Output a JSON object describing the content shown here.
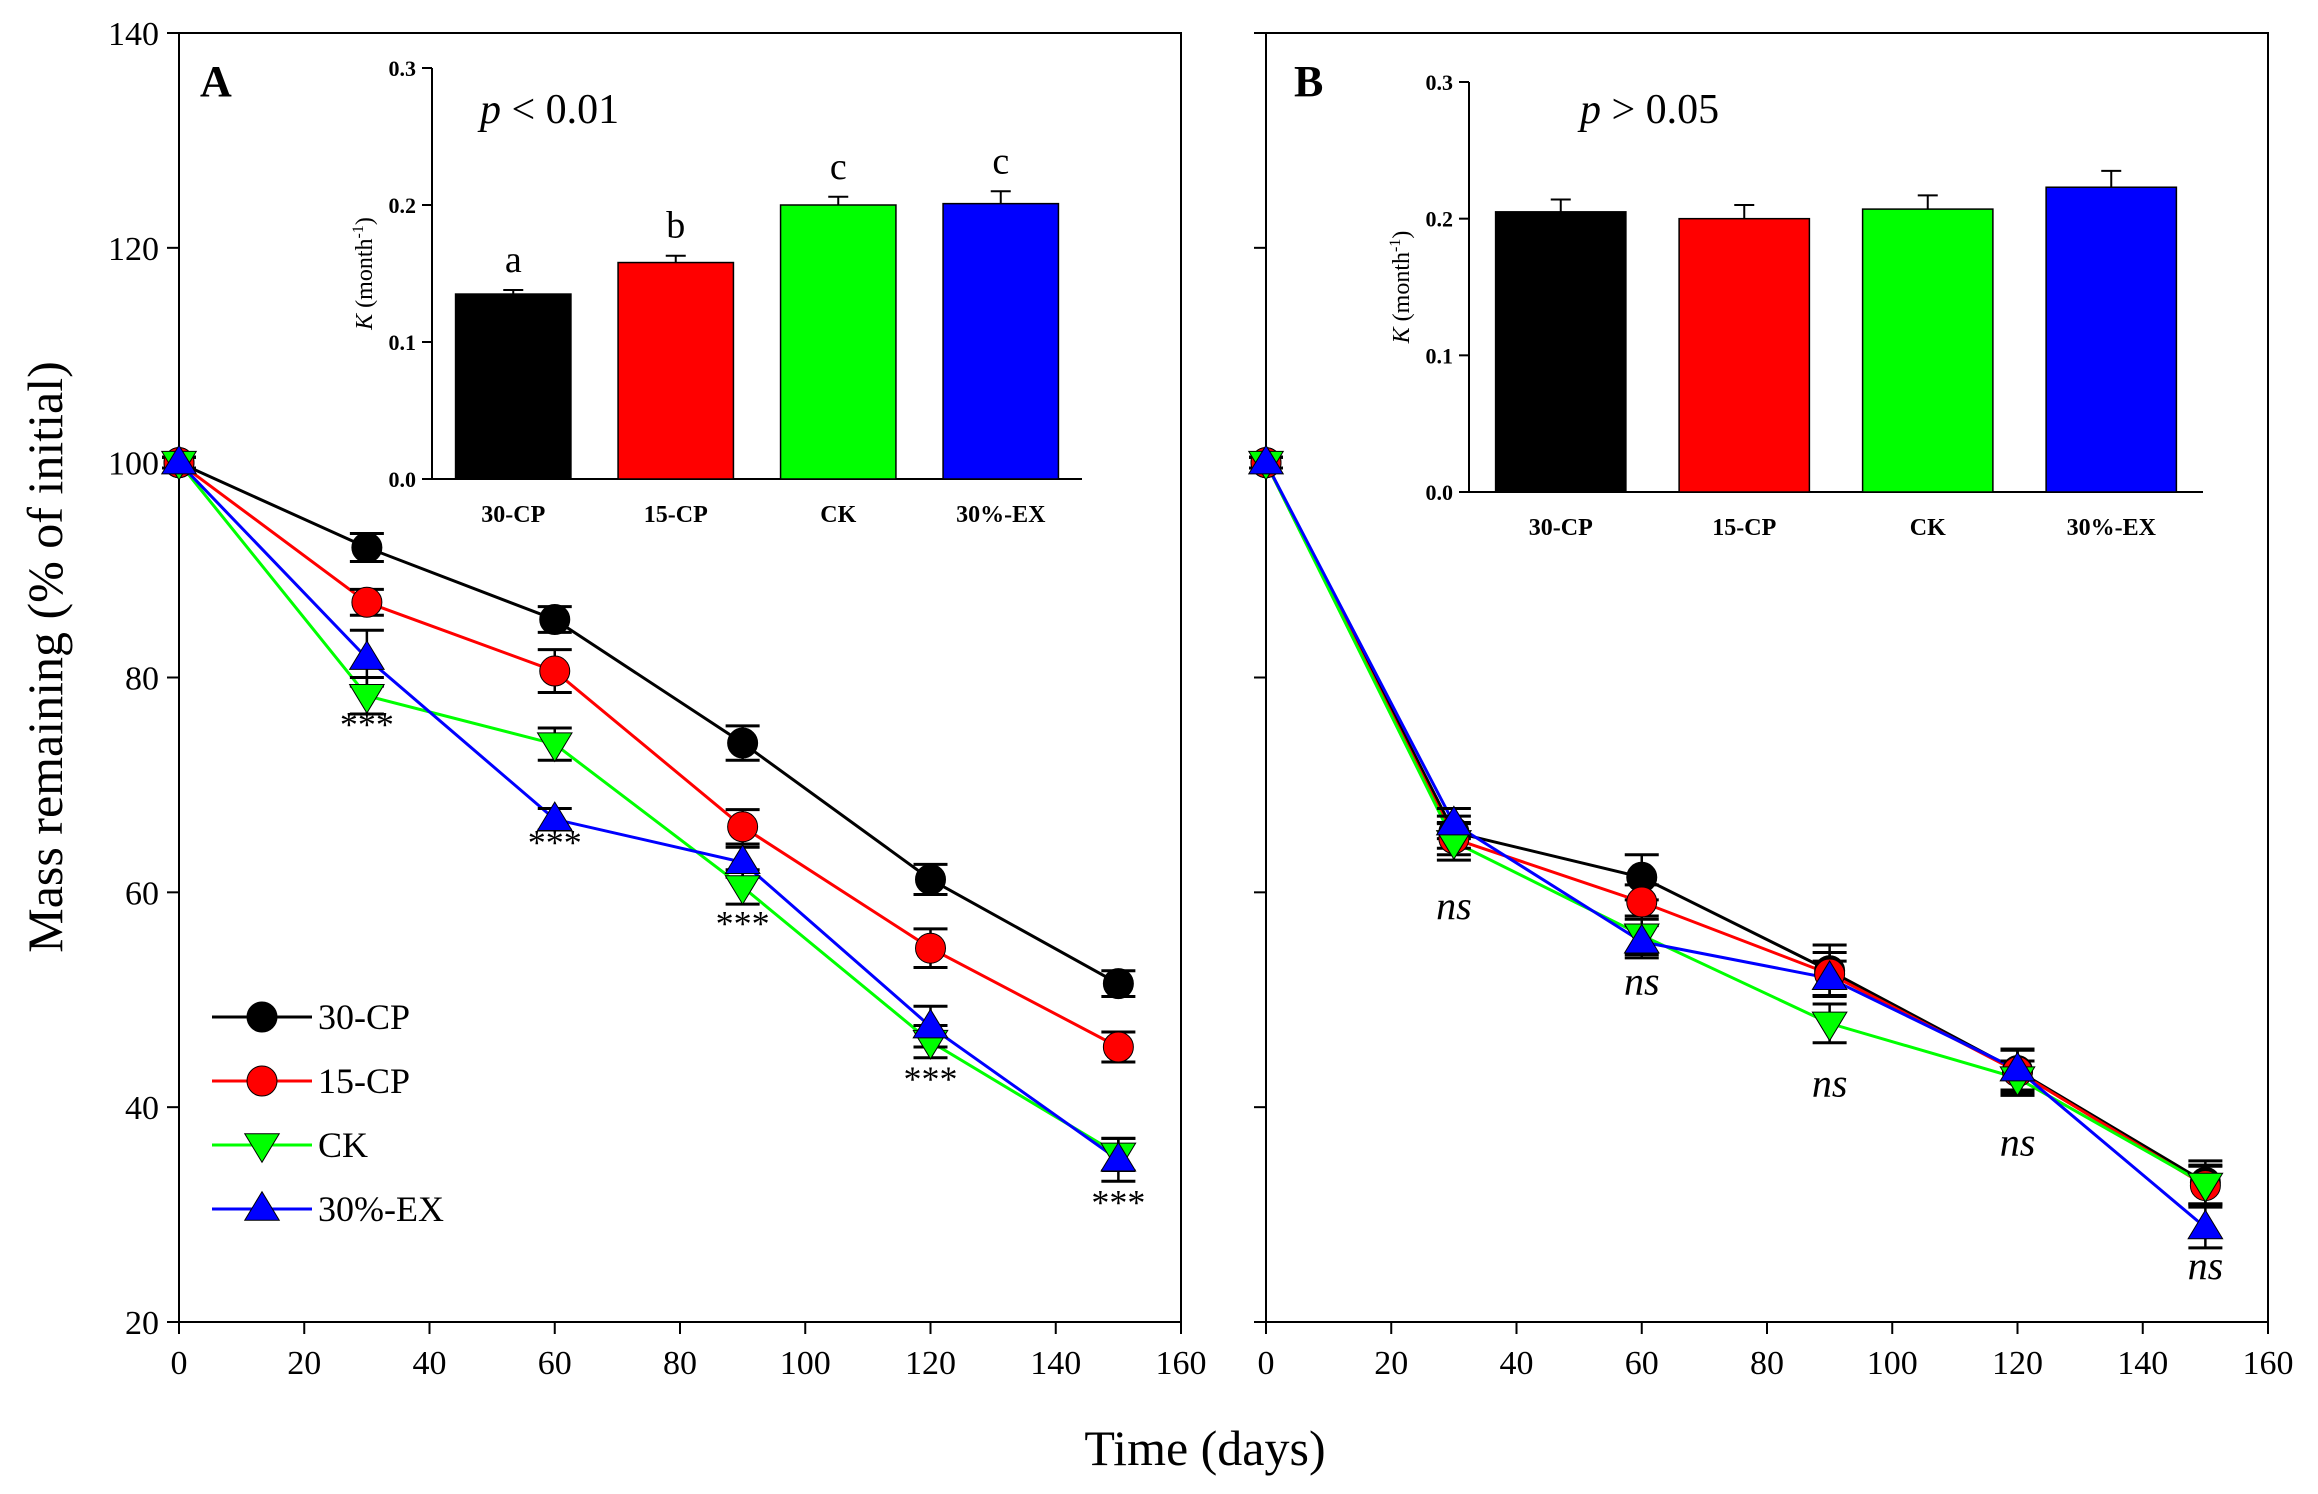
{
  "figure": {
    "shared_xlabel": "Time (days)",
    "shared_ylabel": "Mass remaining (% of initial)"
  },
  "colors": {
    "30-CP": "#000000",
    "15-CP": "#ff0000",
    "CK": "#00ff00",
    "30%-EX": "#0000ff"
  },
  "chart_data": [
    {
      "type": "line",
      "panel_label": "A",
      "xlabel": "Time (days)",
      "ylabel": "Mass remaining (% of initial)",
      "xlim": [
        0,
        160
      ],
      "ylim": [
        20,
        140
      ],
      "xticks": [
        0,
        20,
        40,
        60,
        80,
        100,
        120,
        140,
        160
      ],
      "yticks": [
        20,
        40,
        60,
        80,
        100,
        120,
        140
      ],
      "x": [
        0,
        30,
        60,
        90,
        120,
        150
      ],
      "series": [
        {
          "name": "30-CP",
          "marker": "circle",
          "values": [
            100,
            92.1,
            85.4,
            73.9,
            61.2,
            51.5
          ],
          "errors": [
            0.5,
            1.3,
            1.2,
            1.6,
            1.4,
            1.2
          ]
        },
        {
          "name": "15-CP",
          "marker": "circle",
          "values": [
            100,
            87.0,
            80.6,
            66.1,
            54.8,
            45.6
          ],
          "errors": [
            0.5,
            1.2,
            2.0,
            1.6,
            1.8,
            1.4
          ]
        },
        {
          "name": "CK",
          "marker": "triangle-down",
          "values": [
            100,
            78.3,
            73.8,
            60.5,
            46.1,
            35.6
          ],
          "errors": [
            0.5,
            1.7,
            1.5,
            1.6,
            1.5,
            1.5
          ]
        },
        {
          "name": "30%-EX",
          "marker": "triangle-up",
          "values": [
            100,
            81.8,
            66.8,
            62.8,
            47.5,
            35.1
          ],
          "errors": [
            0.5,
            2.6,
            1.0,
            1.4,
            1.9,
            2.0
          ]
        }
      ],
      "significance": [
        {
          "x": 30,
          "y": 74.5,
          "label": "***",
          "italic": false
        },
        {
          "x": 60,
          "y": 63.5,
          "label": "***",
          "italic": false
        },
        {
          "x": 90,
          "y": 56.0,
          "label": "***",
          "italic": false
        },
        {
          "x": 120,
          "y": 41.5,
          "label": "***",
          "italic": false
        },
        {
          "x": 150,
          "y": 30.0,
          "label": "***",
          "italic": false
        }
      ],
      "legend": {
        "position": "lower-left",
        "entries": [
          "30-CP",
          "15-CP",
          "CK",
          "30%-EX"
        ]
      },
      "inset": {
        "type": "bar",
        "categories": [
          "30-CP",
          "15-CP",
          "CK",
          "30%-EX"
        ],
        "values": [
          0.135,
          0.158,
          0.2,
          0.201
        ],
        "errors": [
          0.003,
          0.005,
          0.006,
          0.009
        ],
        "letters": [
          "a",
          "b",
          "c",
          "c"
        ],
        "ylabel_main": "K",
        "ylabel_unit": "(month",
        "ylabel_sup": "-1",
        "ylabel_close": ")",
        "ylim": [
          0,
          0.3
        ],
        "yticks": [
          "0.0",
          "0.1",
          "0.2",
          "0.3"
        ],
        "p_italic": "p",
        "p_rest": " < 0.01"
      }
    },
    {
      "type": "line",
      "panel_label": "B",
      "xlabel": "Time (days)",
      "ylabel": "Mass remaining (% of initial)",
      "xlim": [
        0,
        160
      ],
      "ylim": [
        20,
        140
      ],
      "xticks": [
        0,
        20,
        40,
        60,
        80,
        100,
        120,
        140,
        160
      ],
      "yticks": [
        20,
        40,
        60,
        80,
        100,
        120,
        140
      ],
      "x": [
        0,
        30,
        60,
        90,
        120,
        150
      ],
      "series": [
        {
          "name": "30-CP",
          "marker": "circle",
          "values": [
            100,
            65.6,
            61.4,
            52.7,
            43.4,
            33.0
          ],
          "errors": [
            0.5,
            1.5,
            2.1,
            2.4,
            2.0,
            2.0
          ]
        },
        {
          "name": "15-CP",
          "marker": "circle",
          "values": [
            100,
            65.0,
            59.1,
            52.4,
            43.3,
            32.7
          ],
          "errors": [
            0.5,
            1.5,
            1.6,
            2.0,
            2.0,
            1.8
          ]
        },
        {
          "name": "CK",
          "marker": "triangle-down",
          "values": [
            100,
            64.7,
            56.0,
            47.8,
            42.7,
            32.8
          ],
          "errors": [
            0.5,
            1.7,
            1.8,
            1.8,
            1.6,
            1.8
          ]
        },
        {
          "name": "30%-EX",
          "marker": "triangle-up",
          "values": [
            100,
            66.4,
            55.4,
            52.0,
            43.5,
            28.8
          ],
          "errors": [
            0.5,
            1.4,
            1.5,
            1.6,
            1.9,
            1.9
          ]
        }
      ],
      "significance": [
        {
          "x": 30,
          "y": 57.5,
          "label": "ns",
          "italic": true
        },
        {
          "x": 60,
          "y": 50.5,
          "label": "ns",
          "italic": true
        },
        {
          "x": 90,
          "y": 41.0,
          "label": "ns",
          "italic": true
        },
        {
          "x": 120,
          "y": 35.5,
          "label": "ns",
          "italic": true
        },
        {
          "x": 150,
          "y": 24.0,
          "label": "ns",
          "italic": true
        }
      ],
      "inset": {
        "type": "bar",
        "categories": [
          "30-CP",
          "15-CP",
          "CK",
          "30%-EX"
        ],
        "values": [
          0.205,
          0.2,
          0.207,
          0.223
        ],
        "errors": [
          0.009,
          0.01,
          0.01,
          0.012
        ],
        "letters": [],
        "ylabel_main": "K",
        "ylabel_unit": "(month",
        "ylabel_sup": "-1",
        "ylabel_close": ")",
        "ylim": [
          0,
          0.3
        ],
        "yticks": [
          "0.0",
          "0.1",
          "0.2",
          "0.3"
        ],
        "p_italic": "p",
        "p_rest": " > 0.05"
      }
    }
  ]
}
